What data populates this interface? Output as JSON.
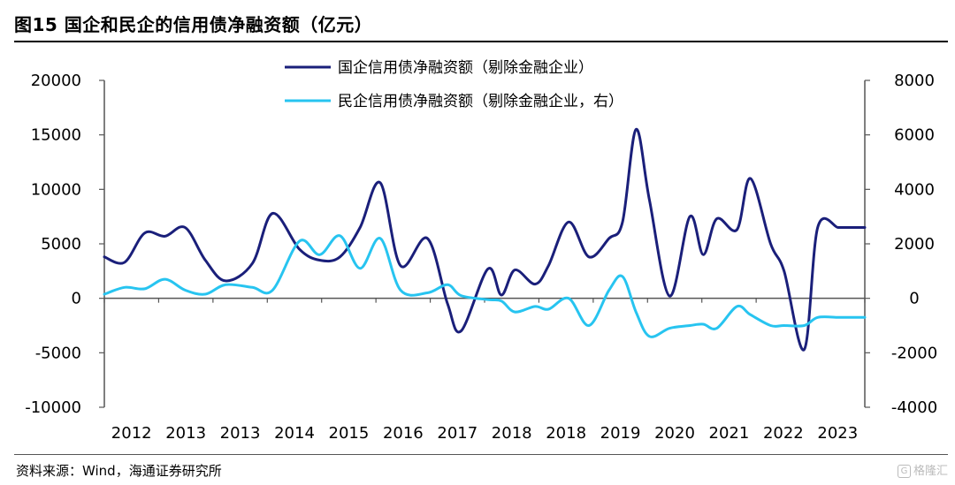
{
  "header": {
    "title": "图15 国企和民企的信用债净融资额（亿元）"
  },
  "footer": {
    "source": "资料来源：Wind，海通证券研究所",
    "watermark": "格隆汇",
    "watermark_icon": "G"
  },
  "chart_data": {
    "type": "line",
    "title": "图15 国企和民企的信用债净融资额（亿元）",
    "x_tick_labels": [
      "2012",
      "2013",
      "2013",
      "2014",
      "2015",
      "2016",
      "2017",
      "2018",
      "2018",
      "2019",
      "2020",
      "2021",
      "2022",
      "2023"
    ],
    "left_axis": {
      "ylim": [
        -10000,
        20000
      ],
      "ticks": [
        -10000,
        -5000,
        0,
        5000,
        10000,
        15000,
        20000
      ]
    },
    "right_axis": {
      "ylim": [
        -4000,
        8000
      ],
      "ticks": [
        -4000,
        -2000,
        0,
        2000,
        4000,
        6000,
        8000
      ]
    },
    "grid": false,
    "legend_position": "top-center",
    "colors": {
      "soe": "#1a1f7a",
      "private": "#27c4f0"
    },
    "series": [
      {
        "name": "国企信用债净融资额（剔除金融企业）",
        "axis": "left",
        "x": [
          2012.0,
          2012.3,
          2012.6,
          2012.9,
          2013.2,
          2013.5,
          2013.8,
          2014.2,
          2014.5,
          2014.9,
          2015.2,
          2015.5,
          2015.8,
          2016.1,
          2016.4,
          2016.8,
          2017.1,
          2017.3,
          2017.7,
          2017.9,
          2018.1,
          2018.4,
          2018.6,
          2018.9,
          2019.2,
          2019.5,
          2019.7,
          2019.9,
          2020.1,
          2020.4,
          2020.7,
          2020.9,
          2021.1,
          2021.4,
          2021.6,
          2021.9,
          2022.1,
          2022.4,
          2022.6,
          2022.9,
          2023.0,
          2023.2,
          2023.3
        ],
        "values": [
          3800,
          3300,
          6000,
          5700,
          6500,
          3500,
          1600,
          3200,
          7800,
          4500,
          3500,
          3800,
          6500,
          10600,
          3000,
          5500,
          -500,
          -3000,
          2700,
          300,
          2600,
          1300,
          3000,
          7000,
          3800,
          5500,
          7000,
          15500,
          9000,
          200,
          7500,
          4000,
          7300,
          6300,
          11000,
          5000,
          2500,
          -4700,
          6500,
          6500,
          6500,
          6500,
          6500
        ]
      },
      {
        "name": "民企信用债净融资额（剔除金融企业，右）",
        "axis": "right",
        "x": [
          2012.0,
          2012.3,
          2012.6,
          2012.9,
          2013.2,
          2013.5,
          2013.8,
          2014.2,
          2014.5,
          2014.9,
          2015.2,
          2015.5,
          2015.8,
          2016.1,
          2016.4,
          2016.8,
          2017.1,
          2017.3,
          2017.7,
          2017.9,
          2018.1,
          2018.4,
          2018.6,
          2018.9,
          2019.2,
          2019.5,
          2019.7,
          2019.9,
          2020.1,
          2020.4,
          2020.7,
          2020.9,
          2021.1,
          2021.4,
          2021.6,
          2021.9,
          2022.1,
          2022.4,
          2022.6,
          2022.9,
          2023.0,
          2023.2,
          2023.3
        ],
        "values": [
          150,
          400,
          350,
          700,
          300,
          150,
          500,
          400,
          300,
          2100,
          1600,
          2300,
          1100,
          2200,
          300,
          200,
          500,
          100,
          -50,
          -100,
          -500,
          -300,
          -400,
          0,
          -1000,
          300,
          800,
          -500,
          -1400,
          -1100,
          -1000,
          -950,
          -1100,
          -300,
          -600,
          -1000,
          -1000,
          -1000,
          -700,
          -700,
          -700,
          -700,
          -700
        ]
      }
    ]
  }
}
